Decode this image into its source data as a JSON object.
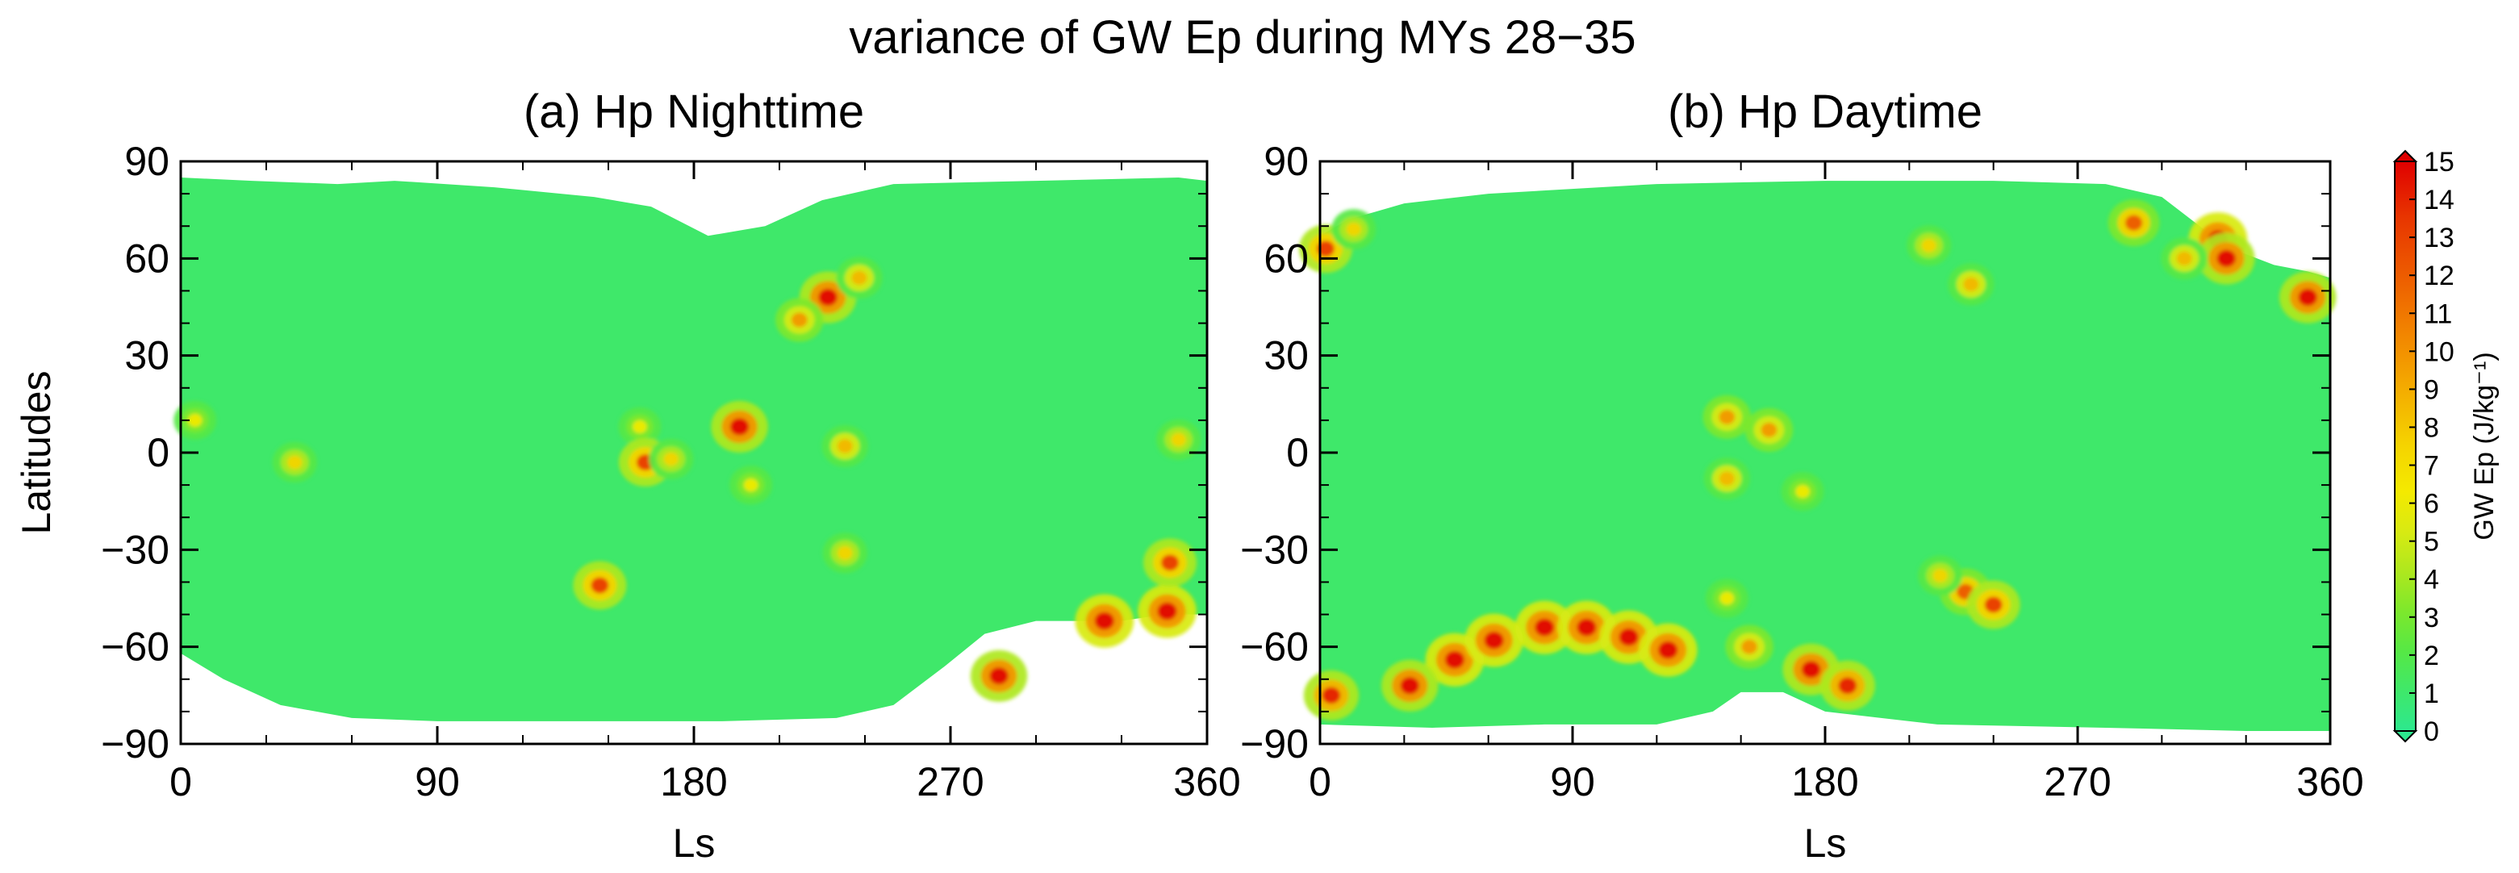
{
  "chart_data": {
    "type": "heatmap",
    "title": "variance of GW Ep during MYs 28−35",
    "colorbar": {
      "label": "GW Ep (J/kg⁻¹)",
      "ticks": [
        "0",
        "1",
        "2",
        "3",
        "4",
        "5",
        "6",
        "7",
        "8",
        "9",
        "10",
        "11",
        "12",
        "13",
        "14",
        "15"
      ],
      "range": [
        0,
        15
      ],
      "colors": [
        "#2de88e",
        "#3fe86a",
        "#56e845",
        "#7de82c",
        "#aee81e",
        "#d8ea12",
        "#f4ea00",
        "#f5d400",
        "#f4b400",
        "#f39400",
        "#f07400",
        "#ec5400",
        "#e83600",
        "#e41a00",
        "#e00000"
      ]
    },
    "panels": [
      {
        "id": "a",
        "title": "(a) Hp Nighttime",
        "xlabel": "Ls",
        "ylabel": "Latitudes",
        "xlim": [
          0,
          360
        ],
        "ylim": [
          -90,
          90
        ],
        "xticks": [
          "0",
          "90",
          "180",
          "270",
          "360"
        ],
        "yticks": [
          "90",
          "60",
          "30",
          "0",
          "−30",
          "−60",
          "−90"
        ],
        "background_level": 1.5,
        "coverage": {
          "north_edge": [
            [
              0,
              85
            ],
            [
              25,
              84
            ],
            [
              55,
              83
            ],
            [
              75,
              84
            ],
            [
              110,
              82
            ],
            [
              145,
              79
            ],
            [
              165,
              76
            ],
            [
              185,
              67
            ],
            [
              205,
              70
            ],
            [
              225,
              78
            ],
            [
              250,
              83
            ],
            [
              300,
              84
            ],
            [
              350,
              85
            ],
            [
              360,
              84
            ]
          ],
          "south_edge": [
            [
              0,
              -62
            ],
            [
              15,
              -70
            ],
            [
              35,
              -78
            ],
            [
              60,
              -82
            ],
            [
              90,
              -83
            ],
            [
              140,
              -83
            ],
            [
              190,
              -83
            ],
            [
              230,
              -82
            ],
            [
              250,
              -78
            ],
            [
              268,
              -66
            ],
            [
              282,
              -56
            ],
            [
              300,
              -52
            ],
            [
              330,
              -52
            ],
            [
              345,
              -50
            ],
            [
              360,
              -50
            ]
          ]
        },
        "hotspots": [
          {
            "ls": 227,
            "lat": 48,
            "value": 14
          },
          {
            "ls": 217,
            "lat": 41,
            "value": 9
          },
          {
            "ls": 238,
            "lat": 54,
            "value": 8
          },
          {
            "ls": 196,
            "lat": 8,
            "value": 14
          },
          {
            "ls": 40,
            "lat": -3,
            "value": 7
          },
          {
            "ls": 233,
            "lat": 2,
            "value": 8
          },
          {
            "ls": 233,
            "lat": -31,
            "value": 7
          },
          {
            "ls": 324,
            "lat": -52,
            "value": 15
          },
          {
            "ls": 350,
            "lat": 4,
            "value": 7
          },
          {
            "ls": 346,
            "lat": -49,
            "value": 15
          },
          {
            "ls": 161,
            "lat": 8,
            "value": 6
          },
          {
            "ls": 163,
            "lat": -3,
            "value": 12
          },
          {
            "ls": 172,
            "lat": -2,
            "value": 7
          },
          {
            "ls": 147,
            "lat": -41,
            "value": 12
          },
          {
            "ls": 347,
            "lat": -34,
            "value": 12
          },
          {
            "ls": 287,
            "lat": -69,
            "value": 14
          },
          {
            "ls": 5,
            "lat": 10,
            "value": 6
          },
          {
            "ls": 200,
            "lat": -10,
            "value": 6
          }
        ]
      },
      {
        "id": "b",
        "title": "(b) Hp Daytime",
        "xlabel": "Ls",
        "ylabel": "",
        "xlim": [
          0,
          360
        ],
        "ylim": [
          -90,
          90
        ],
        "xticks": [
          "0",
          "90",
          "180",
          "270",
          "360"
        ],
        "yticks": [
          "90",
          "60",
          "30",
          "0",
          "−30",
          "−60",
          "−90"
        ],
        "background_level": 1.5,
        "coverage": {
          "north_edge": [
            [
              0,
              67
            ],
            [
              10,
              72
            ],
            [
              30,
              77
            ],
            [
              60,
              80
            ],
            [
              120,
              83
            ],
            [
              180,
              84
            ],
            [
              240,
              84
            ],
            [
              280,
              83
            ],
            [
              300,
              79
            ],
            [
              315,
              69
            ],
            [
              325,
              63
            ],
            [
              340,
              58
            ],
            [
              352,
              56
            ],
            [
              360,
              54
            ]
          ],
          "south_edge": [
            [
              0,
              -84
            ],
            [
              40,
              -85
            ],
            [
              80,
              -84
            ],
            [
              120,
              -84
            ],
            [
              140,
              -80
            ],
            [
              150,
              -74
            ],
            [
              165,
              -74
            ],
            [
              180,
              -80
            ],
            [
              220,
              -84
            ],
            [
              280,
              -85
            ],
            [
              330,
              -86
            ],
            [
              360,
              -86
            ]
          ]
        },
        "hotspots": [
          {
            "ls": 48,
            "lat": -64,
            "value": 15
          },
          {
            "ls": 62,
            "lat": -58,
            "value": 15
          },
          {
            "ls": 80,
            "lat": -54,
            "value": 15
          },
          {
            "ls": 95,
            "lat": -54,
            "value": 15
          },
          {
            "ls": 110,
            "lat": -57,
            "value": 15
          },
          {
            "ls": 124,
            "lat": -61,
            "value": 15
          },
          {
            "ls": 32,
            "lat": -72,
            "value": 14
          },
          {
            "ls": 4,
            "lat": -75,
            "value": 13
          },
          {
            "ls": 153,
            "lat": -60,
            "value": 9
          },
          {
            "ls": 175,
            "lat": -67,
            "value": 14
          },
          {
            "ls": 188,
            "lat": -72,
            "value": 13
          },
          {
            "ls": 160,
            "lat": 7,
            "value": 9
          },
          {
            "ls": 145,
            "lat": -8,
            "value": 8
          },
          {
            "ls": 145,
            "lat": 11,
            "value": 9
          },
          {
            "ls": 172,
            "lat": -12,
            "value": 6
          },
          {
            "ls": 230,
            "lat": -43,
            "value": 11
          },
          {
            "ls": 240,
            "lat": -47,
            "value": 12
          },
          {
            "ls": 221,
            "lat": -38,
            "value": 7
          },
          {
            "ls": 232,
            "lat": 52,
            "value": 8
          },
          {
            "ls": 217,
            "lat": 64,
            "value": 7
          },
          {
            "ls": 320,
            "lat": 66,
            "value": 15
          },
          {
            "ls": 323,
            "lat": 60,
            "value": 14
          },
          {
            "ls": 290,
            "lat": 71,
            "value": 11
          },
          {
            "ls": 308,
            "lat": 60,
            "value": 8
          },
          {
            "ls": 352,
            "lat": 48,
            "value": 14
          },
          {
            "ls": 2,
            "lat": 63,
            "value": 12
          },
          {
            "ls": 12,
            "lat": 69,
            "value": 7
          },
          {
            "ls": 145,
            "lat": -45,
            "value": 6
          }
        ]
      }
    ]
  }
}
